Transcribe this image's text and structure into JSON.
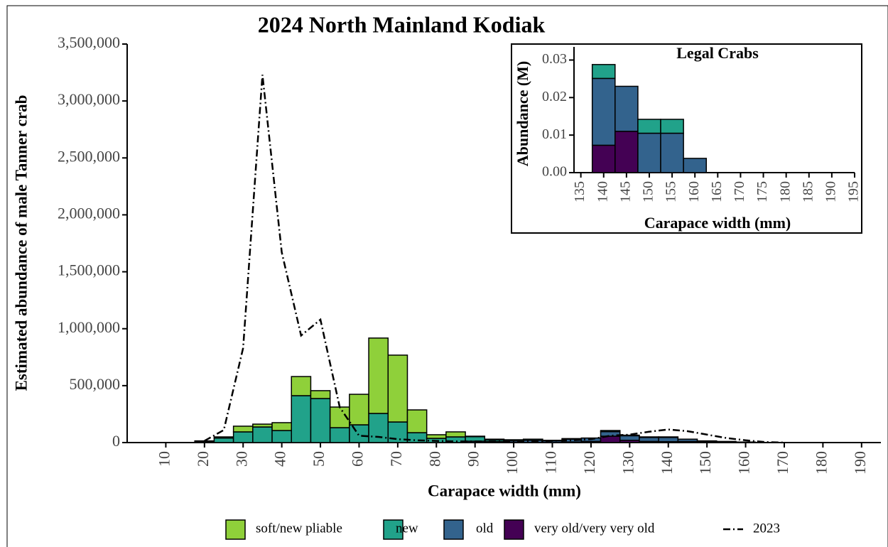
{
  "chart_data": [
    {
      "type": "histogram",
      "title": "2024 North Mainland Kodiak",
      "x_label": "Carapace width (mm)",
      "y_label": "Estimated abundance of male Tanner crab",
      "xlim": [
        0,
        195
      ],
      "ylim": [
        0,
        3500000
      ],
      "xticks": [
        10,
        20,
        30,
        40,
        50,
        60,
        70,
        80,
        90,
        100,
        110,
        120,
        130,
        140,
        150,
        160,
        170,
        180,
        190
      ],
      "yticks": [
        0,
        {
          "value": 500000,
          "label": "500,000"
        },
        {
          "value": 1000000,
          "label": "1,000,000"
        },
        {
          "value": 1500000,
          "label": "1,500,000"
        },
        {
          "value": 2000000,
          "label": "2,000,000"
        },
        {
          "value": 2500000,
          "label": "2,500,000"
        },
        {
          "value": 3000000,
          "label": "3,000,000"
        },
        {
          "value": 3500000,
          "label": "3,500,000"
        }
      ],
      "bins": [
        17.5,
        22.5,
        27.5,
        32.5,
        37.5,
        42.5,
        47.5,
        52.5,
        57.5,
        62.5,
        67.5,
        72.5,
        77.5,
        82.5,
        87.5,
        92.5,
        97.5,
        102.5,
        107.5,
        112.5,
        117.5,
        122.5,
        127.5,
        132.5,
        137.5,
        142.5,
        147.5,
        152.5,
        157.5,
        162.5
      ],
      "legend": "bottom",
      "series": [
        {
          "name": "soft/new pliable",
          "color": "#8fd03a",
          "values": [
            5000,
            10000,
            50000,
            25000,
            69000,
            168000,
            69000,
            181000,
            268000,
            662000,
            587000,
            200000,
            32000,
            44000,
            4000,
            5000,
            0,
            0,
            0,
            0,
            0,
            0,
            0,
            0,
            0,
            0,
            0,
            0,
            0
          ]
        },
        {
          "name": "new",
          "color": "#21a28a",
          "values": [
            10000,
            40000,
            94000,
            137000,
            106000,
            412000,
            387000,
            131000,
            156000,
            256000,
            181000,
            87000,
            37000,
            50000,
            40000,
            15000,
            10000,
            10000,
            5000,
            5000,
            0,
            10000,
            5000,
            5000,
            5000,
            0,
            5000,
            2000,
            0
          ]
        },
        {
          "name": "old",
          "color": "#33638d",
          "values": [
            0,
            0,
            0,
            0,
            0,
            0,
            0,
            0,
            0,
            0,
            0,
            0,
            0,
            0,
            12000,
            10000,
            15000,
            20000,
            15000,
            25000,
            30000,
            40000,
            40000,
            35000,
            37000,
            20000,
            10000,
            8000,
            5000
          ]
        },
        {
          "name": "very old/very very old",
          "color": "#440154",
          "values": [
            0,
            0,
            0,
            0,
            0,
            0,
            0,
            0,
            0,
            0,
            0,
            0,
            0,
            0,
            0,
            0,
            0,
            0,
            0,
            5000,
            10000,
            56000,
            20000,
            10000,
            8000,
            10000,
            0,
            0,
            0
          ]
        },
        {
          "name": "2023",
          "type": "line",
          "color": "#000000",
          "x": [
            20,
            25,
            30,
            35,
            40,
            45,
            50,
            55,
            60,
            65,
            70,
            75,
            80,
            85,
            90,
            95,
            100,
            105,
            110,
            115,
            120,
            125,
            130,
            135,
            140,
            145,
            150,
            155,
            160,
            165,
            170
          ],
          "values": [
            15000,
            110000,
            830000,
            3230000,
            1670000,
            940000,
            1080000,
            310000,
            60000,
            50000,
            30000,
            20000,
            15000,
            10000,
            10000,
            10000,
            10000,
            10000,
            15000,
            20000,
            30000,
            60000,
            70000,
            95000,
            115000,
            100000,
            70000,
            40000,
            20000,
            5000,
            0
          ]
        }
      ]
    },
    {
      "type": "histogram",
      "title": "Legal Crabs",
      "x_label": "Carapace width (mm)",
      "y_label": "Abundance (M)",
      "xlim": [
        133.5,
        195
      ],
      "ylim": [
        0,
        0.0335
      ],
      "xticks": [
        135,
        140,
        145,
        150,
        155,
        160,
        165,
        170,
        175,
        180,
        185,
        190,
        195
      ],
      "yticks": [
        {
          "value": 0,
          "label": "0.00"
        },
        {
          "value": 0.01,
          "label": "0.01"
        },
        {
          "value": 0.02,
          "label": "0.02"
        },
        {
          "value": 0.03,
          "label": "0.03"
        }
      ],
      "bins": [
        137.5,
        142.5,
        147.5,
        152.5,
        157.5,
        162.5
      ],
      "series": [
        {
          "color": "#21a28a",
          "values": [
            0.0037,
            0,
            0.0037,
            0.0037,
            0
          ]
        },
        {
          "color": "#33638d",
          "values": [
            0.0178,
            0.012,
            0.0105,
            0.0105,
            0.0038
          ]
        },
        {
          "color": "#440154",
          "values": [
            0.0073,
            0.011,
            0,
            0,
            0
          ]
        }
      ]
    }
  ]
}
